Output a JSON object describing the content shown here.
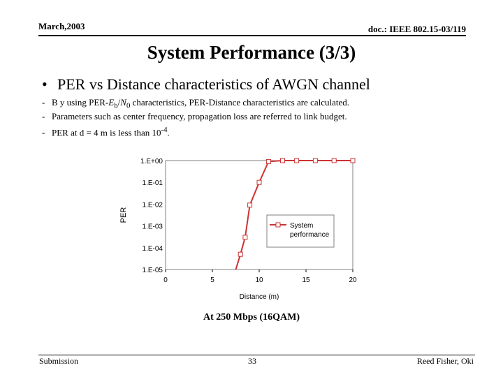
{
  "header": {
    "date": "March,2003",
    "doc": "doc.: IEEE 802.15-03/119"
  },
  "title": "System Performance (3/3)",
  "bullet": {
    "marker": "•",
    "text": "PER vs Distance characteristics of AWGN channel"
  },
  "subpoints": [
    {
      "dash": "-",
      "pre": "B y using PER-",
      "e": "E",
      "b": "b",
      "slash": "/",
      "n": "N",
      "zero": "0",
      "post": " characteristics, PER-Distance characteristics are calculated."
    },
    {
      "dash": "-",
      "text": "Parameters such as center frequency, propagation loss are referred to link budget."
    },
    {
      "dash": "-",
      "pre": "PER at d = 4 m is less than 10",
      "sup": "-4",
      "post": "."
    }
  ],
  "chart_data": {
    "type": "line",
    "xlabel": "Distance (m)",
    "ylabel": "PER",
    "x_ticks": [
      "0",
      "5",
      "10",
      "15",
      "20"
    ],
    "y_ticks": [
      "1.E+00",
      "1.E-01",
      "1.E-02",
      "1.E-03",
      "1.E-04",
      "1.E-05"
    ],
    "xlim": [
      0,
      20
    ],
    "ylim": [
      1e-05,
      1
    ],
    "y_scale": "log",
    "grid": false,
    "legend_position": "right",
    "colors": {
      "line": "#cc3333",
      "marker_fill": "#ffffff",
      "axis": "#000000"
    },
    "series": [
      {
        "name": "System performance",
        "legend_lines": [
          "System",
          "performance"
        ],
        "x": [
          7.5,
          8.0,
          8.5,
          9.0,
          10.0,
          11.0,
          12.5,
          14.0,
          16.0,
          18.0,
          20.0
        ],
        "y": [
          1e-05,
          5e-05,
          0.0003,
          0.009,
          0.1,
          0.9,
          1,
          1,
          1,
          1,
          1
        ]
      }
    ]
  },
  "caption": "At 250 Mbps (16QAM)",
  "footer": {
    "left": "Submission",
    "page": "33",
    "author": "Reed Fisher,  Oki"
  }
}
